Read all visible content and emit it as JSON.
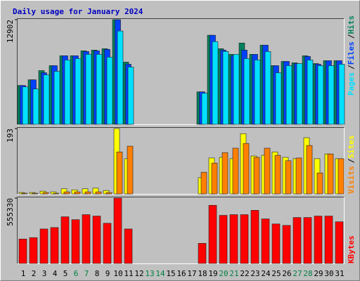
{
  "chart_data": [
    {
      "type": "bar",
      "title": "Daily usage for January 2024",
      "title_color": "#0000c0",
      "ylim": [
        0,
        12902
      ],
      "yticks": [
        12902
      ],
      "legend_separator": "/",
      "series": [
        {
          "name": "Hits",
          "color": "#00805c",
          "values": [
            4795,
            5492,
            6626,
            7236,
            8456,
            8456,
            9067,
            9154,
            9328,
            12902,
            7672,
            null,
            null,
            null,
            null,
            null,
            null,
            4010,
            10985,
            9328,
            8631,
            10026,
            8631,
            9764,
            7236,
            7759,
            7585,
            8456,
            7497,
            7846,
            7846
          ]
        },
        {
          "name": "Files",
          "color": "#0040ff",
          "values": [
            4795,
            5492,
            6364,
            7236,
            8456,
            8456,
            8980,
            9067,
            9241,
            12902,
            7410,
            null,
            null,
            null,
            null,
            null,
            null,
            4010,
            10985,
            9154,
            8456,
            9154,
            8631,
            9764,
            7236,
            7759,
            7497,
            8369,
            7410,
            7846,
            7846
          ]
        },
        {
          "name": "Pages",
          "color": "#00e0ff",
          "values": [
            4620,
            4359,
            6103,
            6539,
            7933,
            8108,
            8631,
            8631,
            8282,
            11508,
            7062,
            null,
            null,
            null,
            null,
            null,
            null,
            3836,
            10200,
            8980,
            8631,
            8108,
            7933,
            8980,
            6364,
            7236,
            7497,
            7933,
            7236,
            7236,
            7410
          ]
        }
      ]
    },
    {
      "type": "bar",
      "ylim": [
        0,
        193
      ],
      "yticks": [
        193
      ],
      "legend_separator": "/",
      "series": [
        {
          "name": "Sites",
          "color": "#ffff00",
          "values": [
            4,
            4,
            8,
            6,
            15,
            12,
            15,
            17,
            10,
            193,
            104,
            null,
            null,
            null,
            null,
            null,
            null,
            48,
            106,
            108,
            104,
            178,
            112,
            114,
            124,
            108,
            104,
            166,
            104,
            118,
            104
          ]
        },
        {
          "name": "Visits",
          "color": "#ff8000",
          "values": [
            2,
            2,
            4,
            2,
            6,
            6,
            6,
            6,
            4,
            124,
            141,
            null,
            null,
            null,
            null,
            null,
            null,
            64,
            91,
            122,
            135,
            149,
            108,
            135,
            114,
            98,
            106,
            143,
            62,
            118,
            104
          ]
        }
      ]
    },
    {
      "type": "bar",
      "ylim": [
        0,
        555330
      ],
      "yticks": [
        555330
      ],
      "categories": [
        "1",
        "2",
        "3",
        "4",
        "5",
        "6",
        "7",
        "8",
        "9",
        "10",
        "11",
        "12",
        "13",
        "14",
        "15",
        "16",
        "17",
        "18",
        "19",
        "20",
        "21",
        "22",
        "23",
        "24",
        "25",
        "26",
        "27",
        "28",
        "29",
        "30",
        "31"
      ],
      "category_colors": [
        "#000000",
        "#000000",
        "#000000",
        "#000000",
        "#000000",
        "#008040",
        "#008040",
        "#000000",
        "#000000",
        "#000000",
        "#000000",
        "#000000",
        "#008040",
        "#008040",
        "#000000",
        "#000000",
        "#000000",
        "#000000",
        "#000000",
        "#008040",
        "#008040",
        "#000000",
        "#000000",
        "#000000",
        "#000000",
        "#000000",
        "#008040",
        "#008040",
        "#000000",
        "#000000",
        "#000000"
      ],
      "series": [
        {
          "name": "KBytes",
          "color": "#ff0000",
          "values": [
            207468,
            219672,
            292896,
            305100,
            396630,
            372222,
            414936,
            402732,
            341712,
            555330,
            292896,
            null,
            null,
            null,
            null,
            null,
            null,
            170856,
            494262,
            408834,
            414936,
            414936,
            451548,
            378324,
            335610,
            323406,
            390528,
            390528,
            402732,
            402732,
            353916
          ]
        }
      ]
    }
  ]
}
